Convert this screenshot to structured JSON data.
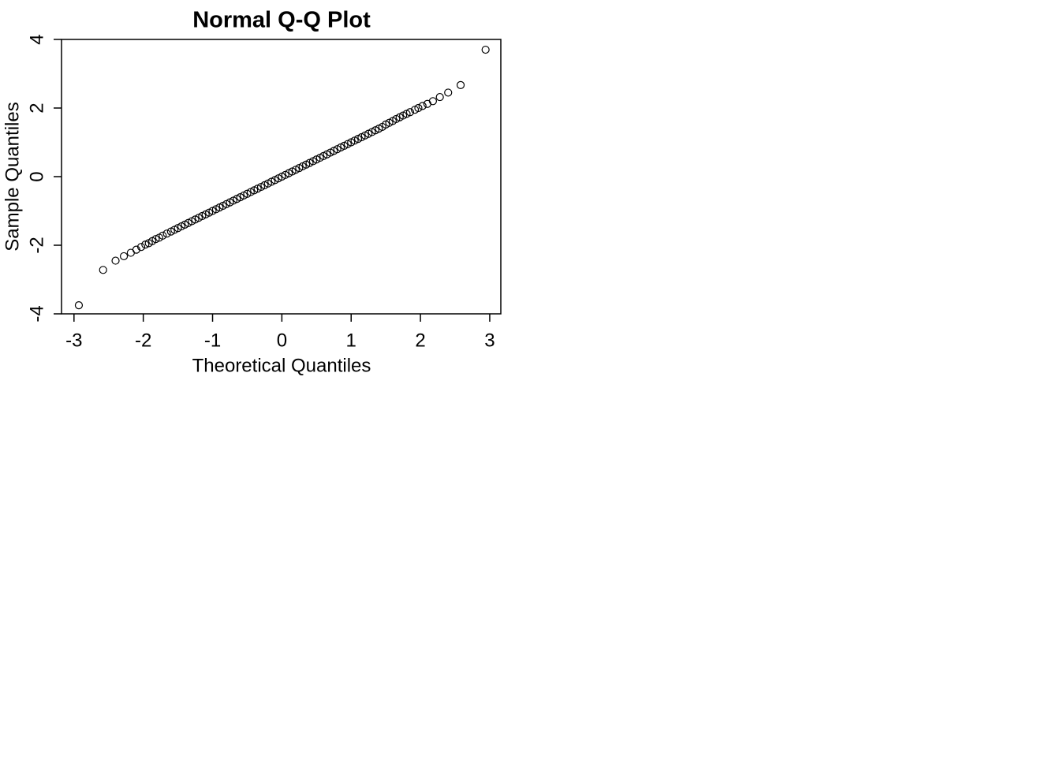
{
  "chart_data": {
    "type": "scatter",
    "title": "Normal Q-Q Plot",
    "x_label": "Theoretical Quantiles",
    "y_label": "Sample Quantiles",
    "x": [
      -2.93,
      -2.58,
      -2.4,
      -2.28,
      -2.18,
      -2.1,
      -2.03,
      -1.97,
      -1.92,
      -1.87,
      -1.82,
      -1.77,
      -1.72,
      -1.66,
      -1.6,
      -1.55,
      -1.5,
      -1.45,
      -1.4,
      -1.35,
      -1.3,
      -1.25,
      -1.2,
      -1.15,
      -1.1,
      -1.05,
      -1,
      -0.95,
      -0.9,
      -0.85,
      -0.8,
      -0.75,
      -0.7,
      -0.65,
      -0.6,
      -0.55,
      -0.5,
      -0.45,
      -0.4,
      -0.35,
      -0.3,
      -0.25,
      -0.2,
      -0.15,
      -0.1,
      -0.05,
      0,
      0.05,
      0.1,
      0.15,
      0.2,
      0.25,
      0.3,
      0.35,
      0.4,
      0.45,
      0.5,
      0.55,
      0.6,
      0.65,
      0.7,
      0.75,
      0.8,
      0.85,
      0.9,
      0.95,
      1,
      1.05,
      1.1,
      1.15,
      1.2,
      1.25,
      1.3,
      1.35,
      1.4,
      1.45,
      1.5,
      1.55,
      1.6,
      1.65,
      1.7,
      1.75,
      1.8,
      1.85,
      1.92,
      1.97,
      2.03,
      2.1,
      2.18,
      2.28,
      2.4,
      2.58,
      2.94
    ],
    "values": [
      -3.75,
      -2.72,
      -2.45,
      -2.32,
      -2.22,
      -2.13,
      -2.05,
      -1.98,
      -1.94,
      -1.88,
      -1.82,
      -1.78,
      -1.72,
      -1.66,
      -1.6,
      -1.55,
      -1.5,
      -1.45,
      -1.4,
      -1.35,
      -1.3,
      -1.25,
      -1.2,
      -1.15,
      -1.1,
      -1.05,
      -1,
      -0.95,
      -0.9,
      -0.85,
      -0.8,
      -0.75,
      -0.7,
      -0.65,
      -0.6,
      -0.55,
      -0.5,
      -0.45,
      -0.4,
      -0.35,
      -0.3,
      -0.25,
      -0.2,
      -0.15,
      -0.1,
      -0.05,
      0,
      0.05,
      0.1,
      0.15,
      0.2,
      0.25,
      0.3,
      0.35,
      0.4,
      0.45,
      0.5,
      0.55,
      0.6,
      0.65,
      0.7,
      0.75,
      0.8,
      0.85,
      0.9,
      0.95,
      1,
      1.05,
      1.1,
      1.15,
      1.2,
      1.25,
      1.3,
      1.35,
      1.4,
      1.45,
      1.52,
      1.57,
      1.62,
      1.68,
      1.73,
      1.78,
      1.83,
      1.88,
      1.95,
      2.0,
      2.06,
      2.12,
      2.2,
      2.32,
      2.45,
      2.67,
      3.7
    ],
    "color": "#000000",
    "xlim": [
      -3.18,
      3.16
    ],
    "ylim": [
      -4,
      4
    ],
    "xticks": [
      -3,
      -2,
      -1,
      0,
      1,
      2,
      3
    ],
    "yticks": [
      -4,
      -2,
      0,
      2,
      4
    ]
  }
}
